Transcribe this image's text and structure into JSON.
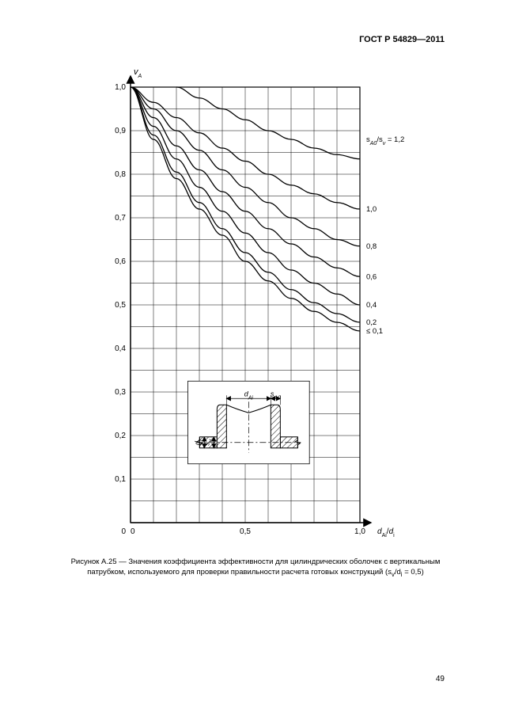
{
  "doc": {
    "standard_code": "ГОСТ Р 54829—2011",
    "page_number": "49"
  },
  "chart": {
    "type": "line",
    "x_axis": {
      "min": 0,
      "max": 1.0,
      "label_html": "d<tspan font-style='italic' baseline-shift='sub' font-size='7'>Ai</tspan>/d<tspan font-style='italic' baseline-shift='sub' font-size='7'>i</tspan>",
      "ticks": [
        0,
        0.5,
        1.0
      ],
      "tick_labels": [
        "0",
        "0,5",
        "1,0"
      ],
      "minor_step": 0.1
    },
    "y_axis": {
      "min": 0,
      "max": 1.0,
      "label_html": "v<tspan font-style='italic' baseline-shift='sub' font-size='7'>A</tspan>",
      "ticks": [
        0,
        0.1,
        0.2,
        0.3,
        0.4,
        0.5,
        0.6,
        0.7,
        0.8,
        0.9,
        1.0
      ],
      "tick_labels": [
        "0",
        "0,1",
        "0,2",
        "0,3",
        "0,4",
        "0,5",
        "0,6",
        "0,7",
        "0,8",
        "0,9",
        "1,0"
      ],
      "minor_step": 0.05
    },
    "series_label_header": "s<tspan font-style='italic' baseline-shift='sub' font-size='7'>A0</tspan>/s<tspan font-style='italic' baseline-shift='sub' font-size='7'>v</tspan> = 1,2",
    "grid_color": "#000000",
    "grid_width": 0.5,
    "axis_color": "#000000",
    "line_color": "#000000",
    "line_width": 1.3,
    "background_color": "#ffffff",
    "label_fontsize": 10,
    "tick_fontsize": 10,
    "series": [
      {
        "label": "≤ 0,1",
        "points": [
          [
            0,
            1.0
          ],
          [
            0.1,
            0.88
          ],
          [
            0.2,
            0.79
          ],
          [
            0.3,
            0.72
          ],
          [
            0.4,
            0.66
          ],
          [
            0.5,
            0.6
          ],
          [
            0.6,
            0.555
          ],
          [
            0.7,
            0.515
          ],
          [
            0.8,
            0.485
          ],
          [
            0.9,
            0.46
          ],
          [
            1.0,
            0.44
          ]
        ]
      },
      {
        "label": "0,2",
        "points": [
          [
            0,
            1.0
          ],
          [
            0.1,
            0.89
          ],
          [
            0.2,
            0.805
          ],
          [
            0.3,
            0.735
          ],
          [
            0.4,
            0.675
          ],
          [
            0.5,
            0.62
          ],
          [
            0.6,
            0.575
          ],
          [
            0.7,
            0.535
          ],
          [
            0.8,
            0.505
          ],
          [
            0.9,
            0.48
          ],
          [
            1.0,
            0.46
          ]
        ]
      },
      {
        "label": "0,4",
        "points": [
          [
            0,
            1.0
          ],
          [
            0.1,
            0.91
          ],
          [
            0.2,
            0.835
          ],
          [
            0.3,
            0.77
          ],
          [
            0.4,
            0.715
          ],
          [
            0.5,
            0.665
          ],
          [
            0.6,
            0.62
          ],
          [
            0.7,
            0.58
          ],
          [
            0.8,
            0.55
          ],
          [
            0.9,
            0.525
          ],
          [
            1.0,
            0.5
          ]
        ]
      },
      {
        "label": "0,6",
        "points": [
          [
            0,
            1.0
          ],
          [
            0.1,
            0.93
          ],
          [
            0.2,
            0.865
          ],
          [
            0.3,
            0.81
          ],
          [
            0.4,
            0.76
          ],
          [
            0.5,
            0.715
          ],
          [
            0.6,
            0.675
          ],
          [
            0.7,
            0.64
          ],
          [
            0.8,
            0.61
          ],
          [
            0.9,
            0.585
          ],
          [
            1.0,
            0.565
          ]
        ]
      },
      {
        "label": "0,8",
        "points": [
          [
            0,
            1.0
          ],
          [
            0.1,
            0.95
          ],
          [
            0.2,
            0.9
          ],
          [
            0.3,
            0.855
          ],
          [
            0.4,
            0.81
          ],
          [
            0.5,
            0.77
          ],
          [
            0.6,
            0.735
          ],
          [
            0.7,
            0.7
          ],
          [
            0.8,
            0.675
          ],
          [
            0.9,
            0.65
          ],
          [
            1.0,
            0.635
          ]
        ]
      },
      {
        "label": "1,0",
        "points": [
          [
            0,
            1.0
          ],
          [
            0.1,
            0.965
          ],
          [
            0.2,
            0.93
          ],
          [
            0.3,
            0.895
          ],
          [
            0.4,
            0.86
          ],
          [
            0.5,
            0.83
          ],
          [
            0.6,
            0.8
          ],
          [
            0.7,
            0.775
          ],
          [
            0.8,
            0.755
          ],
          [
            0.9,
            0.735
          ],
          [
            1.0,
            0.72
          ]
        ]
      },
      {
        "label": "1,2",
        "points": [
          [
            0.2,
            1.0
          ],
          [
            0.3,
            0.975
          ],
          [
            0.4,
            0.95
          ],
          [
            0.5,
            0.925
          ],
          [
            0.6,
            0.9
          ],
          [
            0.7,
            0.88
          ],
          [
            0.8,
            0.86
          ],
          [
            0.9,
            0.845
          ],
          [
            1.0,
            0.835
          ]
        ]
      }
    ],
    "series_label_positions": [
      {
        "label": "≤ 0,1",
        "y": 0.44
      },
      {
        "label": "0,2",
        "y": 0.46
      },
      {
        "label": "0,4",
        "y": 0.5
      },
      {
        "label": "0,6",
        "y": 0.565
      },
      {
        "label": "0,8",
        "y": 0.635
      },
      {
        "label": "1,0",
        "y": 0.72
      }
    ]
  },
  "inset": {
    "labels": {
      "dAi": "d<tspan baseline-shift='sub' font-size='7'>Ai</tspan>",
      "sA0": "s<tspan baseline-shift='sub' font-size='7'>A0</tspan>",
      "sv": "s<tspan baseline-shift='sub' font-size='7'>v</tspan>",
      "di": "d<tspan baseline-shift='sub' font-size='7'>i</tspan>"
    }
  },
  "caption": {
    "prefix": "Рисунок А.25 — ",
    "text_line1": "Значения коэффициента эффективности для цилиндрических оболочек с вертикальным",
    "text_line2_a": "патрубком, используемого для проверки правильности расчета готовых конструкций (",
    "text_line2_b": "s",
    "text_line2_sub_b": "v",
    "text_line2_c": "/d",
    "text_line2_sub_c": "i",
    "text_line2_d": " = 0,5)"
  }
}
